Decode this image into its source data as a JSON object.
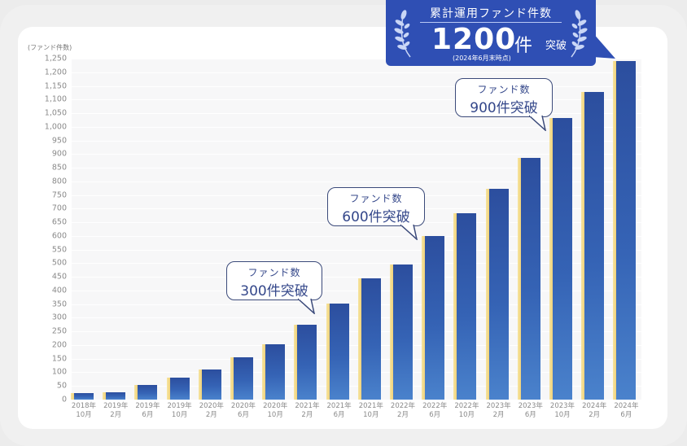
{
  "chart_data": {
    "type": "bar",
    "title": "累計運用ファンド件数",
    "ylabel": "(ファンド件数)",
    "xlabel": "",
    "ylim": [
      0,
      1250
    ],
    "yticks": [
      0,
      50,
      100,
      150,
      200,
      250,
      300,
      350,
      400,
      450,
      500,
      550,
      600,
      650,
      700,
      750,
      800,
      850,
      900,
      950,
      1000,
      1050,
      1100,
      1150,
      1200,
      1250
    ],
    "ytick_labels": [
      "0",
      "50",
      "100",
      "150",
      "200",
      "250",
      "300",
      "350",
      "400",
      "450",
      "500",
      "550",
      "600",
      "650",
      "700",
      "750",
      "800",
      "850",
      "900",
      "950",
      "1,000",
      "1,050",
      "1,100",
      "1,150",
      "1,200",
      "1,250"
    ],
    "grid": true,
    "legend": null,
    "categories": [
      {
        "year": "2018年",
        "month": "10月"
      },
      {
        "year": "2019年",
        "month": "2月"
      },
      {
        "year": "2019年",
        "month": "6月"
      },
      {
        "year": "2019年",
        "month": "10月"
      },
      {
        "year": "2020年",
        "month": "2月"
      },
      {
        "year": "2020年",
        "month": "6月"
      },
      {
        "year": "2020年",
        "month": "10月"
      },
      {
        "year": "2021年",
        "month": "2月"
      },
      {
        "year": "2021年",
        "month": "6月"
      },
      {
        "year": "2021年",
        "month": "10月"
      },
      {
        "year": "2022年",
        "month": "2月"
      },
      {
        "year": "2022年",
        "month": "6月"
      },
      {
        "year": "2022年",
        "month": "10月"
      },
      {
        "year": "2023年",
        "month": "2月"
      },
      {
        "year": "2023年",
        "month": "6月"
      },
      {
        "year": "2023年",
        "month": "10月"
      },
      {
        "year": "2024年",
        "month": "2月"
      },
      {
        "year": "2024年",
        "month": "6月"
      }
    ],
    "values": [
      24,
      27,
      54,
      81,
      110,
      155,
      203,
      275,
      352,
      445,
      496,
      600,
      684,
      773,
      887,
      1033,
      1128,
      1242
    ],
    "annotations": [
      {
        "line1": "ファンド数",
        "line2": "300件突破",
        "points_to": "2021年6月"
      },
      {
        "line1": "ファンド数",
        "line2": "600件突破",
        "points_to": "2022年6月"
      },
      {
        "line1": "ファンド数",
        "line2": "900件突破",
        "points_to": "2023年10月"
      }
    ]
  },
  "badge": {
    "title": "累計運用ファンド件数",
    "number": "1200",
    "unit": "件",
    "suffix": "突破",
    "as_of": "(2024年6月末時点)"
  },
  "colors": {
    "bar_top": "#2c4e9e",
    "bar_bottom": "#4a82cc",
    "bar_highlight": "#f0d27a",
    "badge_bg": "#2f4fb4",
    "bubble_border": "#3b4a7a",
    "bubble_text": "#34478a"
  }
}
